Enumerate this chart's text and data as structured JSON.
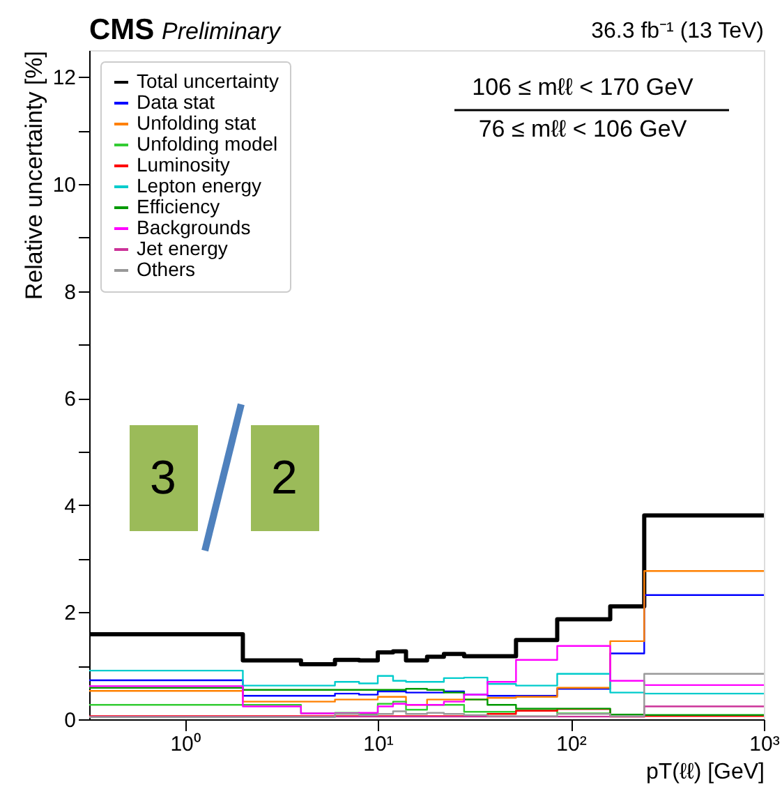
{
  "chart_data": {
    "type": "histogram",
    "title": "CMS",
    "subtitle": "Preliminary",
    "xlabel": "pT(ℓℓ) [GeV]",
    "ylabel": "Relative uncertainty [%]",
    "annotations": [
      "36.3 fb⁻¹ (13 TeV)",
      "106 ≤ mℓℓ < 170 GeV",
      "76 ≤ mℓℓ < 106 GeV",
      "3",
      "2"
    ],
    "bins": [
      0.32,
      2,
      4,
      6,
      8,
      10,
      12,
      14,
      18,
      22,
      28,
      37,
      52,
      85,
      160,
      240,
      1000
    ],
    "series": [
      {
        "name": "Total uncertainty",
        "color": "#000000",
        "values": [
          1.59,
          1.1,
          1.03,
          1.11,
          1.1,
          1.25,
          1.27,
          1.1,
          1.17,
          1.22,
          1.18,
          1.18,
          1.48,
          1.87,
          2.11,
          3.81
        ]
      },
      {
        "name": "Data stat",
        "color": "#0000ff",
        "values": [
          0.73,
          0.44,
          0.44,
          0.48,
          0.46,
          0.52,
          0.52,
          0.5,
          0.5,
          0.52,
          0.46,
          0.44,
          0.44,
          0.57,
          1.23,
          2.32
        ]
      },
      {
        "name": "Unfolding stat",
        "color": "#ff8000",
        "values": [
          0.53,
          0.33,
          0.33,
          0.37,
          0.37,
          0.42,
          0.42,
          0.27,
          0.37,
          0.37,
          0.37,
          0.4,
          0.42,
          0.59,
          1.46,
          2.77
        ]
      },
      {
        "name": "Unfolding model",
        "color": "#33cc33",
        "values": [
          0.27,
          0.27,
          0.11,
          0.12,
          0.1,
          0.29,
          0.33,
          0.18,
          0.27,
          0.27,
          0.14,
          0.14,
          0.17,
          0.11,
          0.09,
          0.08
        ]
      },
      {
        "name": "Luminosity",
        "color": "#ff0000",
        "values": [
          0.06,
          0.06,
          0.06,
          0.06,
          0.06,
          0.06,
          0.06,
          0.06,
          0.06,
          0.06,
          0.06,
          0.1,
          0.16,
          0.19,
          0.05,
          0.06
        ]
      },
      {
        "name": "Lepton energy",
        "color": "#00cccc",
        "values": [
          0.91,
          0.63,
          0.63,
          0.7,
          0.67,
          0.81,
          0.72,
          0.7,
          0.7,
          0.77,
          0.78,
          0.66,
          0.63,
          0.85,
          0.5,
          0.48
        ]
      },
      {
        "name": "Efficiency",
        "color": "#009900",
        "values": [
          0.59,
          0.55,
          0.55,
          0.55,
          0.55,
          0.55,
          0.55,
          0.57,
          0.55,
          0.5,
          0.37,
          0.27,
          0.2,
          0.2,
          0.09,
          0.08
        ]
      },
      {
        "name": "Backgrounds",
        "color": "#ff00ff",
        "values": [
          0.62,
          0.24,
          0.11,
          0.11,
          0.12,
          0.24,
          0.29,
          0.27,
          0.27,
          0.33,
          0.46,
          0.7,
          1.11,
          1.37,
          0.72,
          0.64
        ]
      },
      {
        "name": "Jet energy",
        "color": "#cc3399",
        "values": [
          0.05,
          0.05,
          0.05,
          0.05,
          0.05,
          0.05,
          0.05,
          0.05,
          0.05,
          0.05,
          0.05,
          0.05,
          0.05,
          0.05,
          0.05,
          0.24
        ]
      },
      {
        "name": "Others",
        "color": "#999999",
        "values": [
          0.04,
          0.04,
          0.04,
          0.1,
          0.08,
          0.1,
          0.15,
          0.1,
          0.12,
          0.1,
          0.08,
          0.06,
          0.06,
          0.1,
          0.06,
          0.85
        ]
      }
    ],
    "xlim": [
      0.32,
      1000
    ],
    "ylim": [
      0,
      12.5
    ],
    "log": "x",
    "xticks": [
      {
        "value": 1,
        "label": "10⁰"
      },
      {
        "value": 10,
        "label": "10¹"
      },
      {
        "value": 100,
        "label": "10²"
      },
      {
        "value": 1000,
        "label": "10³"
      }
    ],
    "yticks": [
      0,
      {
        "value": 1,
        "label": null
      },
      2,
      {
        "value": 3,
        "label": null
      },
      4,
      {
        "value": 5,
        "label": null
      },
      6,
      {
        "value": 7,
        "label": null
      },
      8,
      {
        "value": 9,
        "label": null
      },
      10,
      {
        "value": 11,
        "label": null
      },
      12
    ],
    "legend": "top left",
    "grid": false,
    "line_style": "solid"
  }
}
